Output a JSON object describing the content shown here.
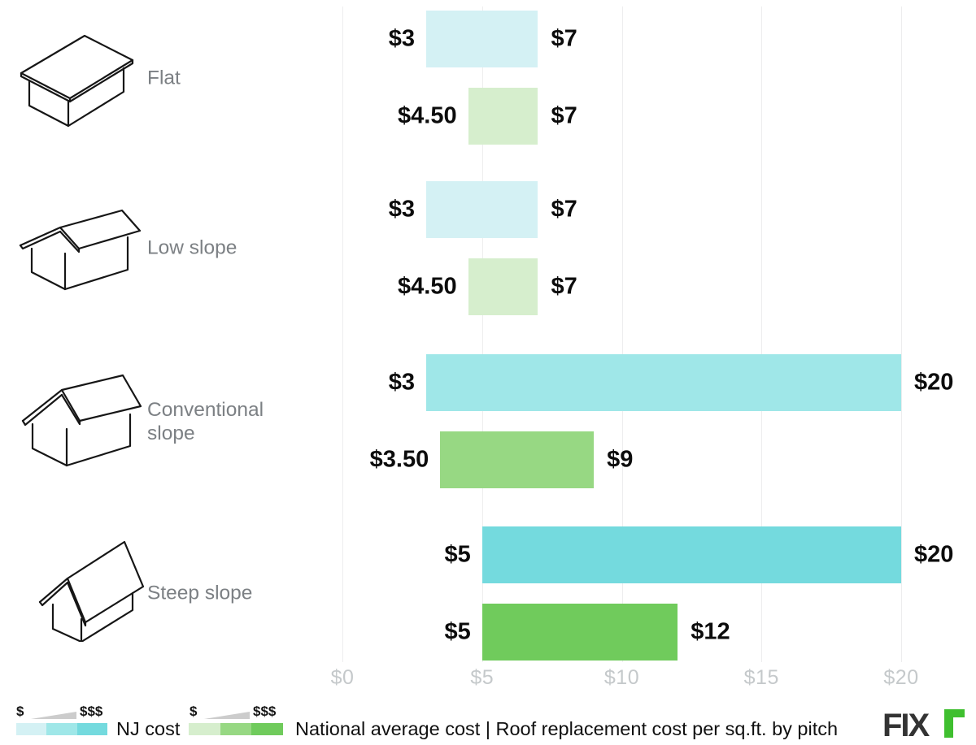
{
  "chart_data": {
    "type": "bar",
    "orientation": "horizontal-range",
    "title": "Roof replacement cost per sq.ft. by pitch",
    "grid": true,
    "x_axis": {
      "min": 0,
      "max": 20,
      "values": [
        0,
        5,
        10,
        15,
        20
      ],
      "ticks": [
        "$0",
        "$5",
        "$10",
        "$15",
        "$20"
      ]
    },
    "series_names": [
      "NJ cost",
      "National average cost"
    ],
    "groups": [
      {
        "label": "Flat",
        "icon": "flat-roof-icon",
        "bars": [
          {
            "series": "NJ cost",
            "min": 3,
            "max": 7,
            "min_label": "$3",
            "max_label": "$7",
            "color": "#d4f1f4"
          },
          {
            "series": "National average cost",
            "min": 4.5,
            "max": 7,
            "min_label": "$4.50",
            "max_label": "$7",
            "color": "#d6eecd"
          }
        ]
      },
      {
        "label": "Low slope",
        "icon": "low-slope-roof-icon",
        "bars": [
          {
            "series": "NJ cost",
            "min": 3,
            "max": 7,
            "min_label": "$3",
            "max_label": "$7",
            "color": "#d4f1f4"
          },
          {
            "series": "National average cost",
            "min": 4.5,
            "max": 7,
            "min_label": "$4.50",
            "max_label": "$7",
            "color": "#d6eecd"
          }
        ]
      },
      {
        "label": "Conventional slope",
        "icon": "conventional-slope-roof-icon",
        "bars": [
          {
            "series": "NJ cost",
            "min": 3,
            "max": 20,
            "min_label": "$3",
            "max_label": "$20",
            "color": "#9fe7e8"
          },
          {
            "series": "National average cost",
            "min": 3.5,
            "max": 9,
            "min_label": "$3.50",
            "max_label": "$9",
            "color": "#97d883"
          }
        ]
      },
      {
        "label": "Steep slope",
        "icon": "steep-slope-roof-icon",
        "bars": [
          {
            "series": "NJ cost",
            "min": 5,
            "max": 20,
            "min_label": "$5",
            "max_label": "$20",
            "color": "#74dade"
          },
          {
            "series": "National average cost",
            "min": 5,
            "max": 12,
            "min_label": "$5",
            "max_label": "$12",
            "color": "#70cb5c"
          }
        ]
      }
    ],
    "legend": [
      {
        "label": "NJ cost",
        "scale_low": "$",
        "scale_high": "$$$",
        "swatches": [
          "#d4f1f4",
          "#9fe7e8",
          "#74dade"
        ]
      },
      {
        "label": "National average cost",
        "scale_low": "$",
        "scale_high": "$$$",
        "swatches": [
          "#d6eecd",
          "#97d883",
          "#70cb5c"
        ]
      }
    ],
    "footer": {
      "separator": " | ",
      "title": "Roof replacement cost per sq.ft. by pitch"
    },
    "branding": {
      "text": "FIX",
      "accent_glyph": "r",
      "accent_color": "#3fbf2f",
      "text_color": "#333333"
    }
  }
}
